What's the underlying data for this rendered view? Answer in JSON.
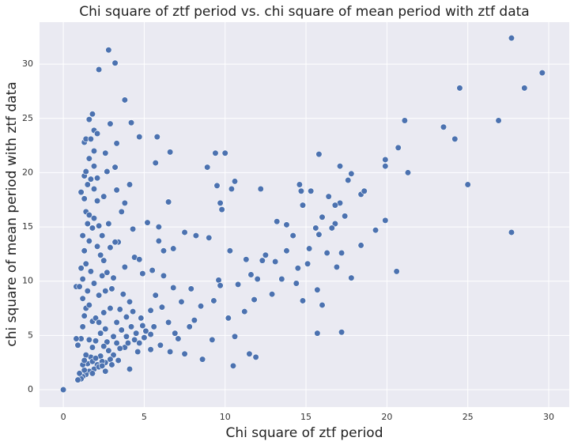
{
  "chart_data": {
    "type": "scatter",
    "title": "Chi square of ztf period vs. chi square of mean period with ztf data",
    "x_label": "Chi square of ztf period",
    "y_label": "chi square of mean period with ztf data",
    "color": "#4c72b0",
    "grid": true,
    "xlim": [
      -1.47,
      31.27
    ],
    "ylim": [
      -1.6,
      33.87
    ],
    "xticks": [
      0,
      5,
      10,
      15,
      20,
      25,
      30
    ],
    "yticks": [
      0,
      5,
      10,
      15,
      20,
      25,
      30
    ],
    "x": [
      0,
      2.8,
      3.2,
      2.2,
      3.8,
      1.8,
      4.2,
      2.9,
      1.6,
      1.9,
      2.1,
      4.7,
      5.8,
      1.3,
      3.3,
      6.6,
      9.4,
      10,
      5.7,
      3.2,
      8.9,
      4.1,
      9.5,
      10.6,
      10.4,
      12.2,
      14.6,
      14.7,
      15.3,
      15.8,
      17.1,
      16.4,
      14.8,
      17.6,
      17.8,
      18.4,
      18.6,
      19.9,
      19.9,
      20.7,
      21.1,
      21.3,
      23.5,
      24.2,
      24.5,
      25,
      26.9,
      27.7,
      28.5,
      29.6,
      27.7,
      20.6,
      19.9,
      19.3,
      18.4,
      17.8,
      17.2,
      15.7,
      16,
      16.9,
      17.2,
      17.4,
      16.8,
      16,
      15.6,
      15.8,
      16.3,
      16.6,
      17.1,
      16.8,
      15.2,
      14.2,
      14.5,
      13.8,
      13.2,
      12.5,
      12,
      11.3,
      10.3,
      10.8,
      11.2,
      11.8,
      12.9,
      13.5,
      14.4,
      14.8,
      15.7,
      15.1,
      10.2,
      10.6,
      10.5,
      11.5,
      11.9,
      9.2,
      8.6,
      9.6,
      9,
      8.2,
      7.5,
      6.8,
      6.2,
      5.2,
      5.9,
      5.9,
      6.5,
      9.7,
      9.8,
      13.8,
      13.1,
      12.3,
      11.6,
      9.7,
      9.3,
      8.5,
      7.9,
      7.3,
      7.8,
      8.1,
      7.1,
      6.6,
      7.5,
      6.2,
      6.8,
      5.5,
      4.9,
      5.7,
      5.4,
      6.1,
      6.5,
      6.9,
      5.4,
      6,
      4.4,
      4.7,
      3.8,
      3.4,
      3.2,
      4.3,
      3.6,
      3.8,
      3.3,
      2.6,
      2.7,
      2.1,
      2.5,
      2.8,
      2.4,
      2.9,
      2.5,
      2.4,
      3,
      3.7,
      4.1,
      3.5,
      3.3,
      3.9,
      4.3,
      4.8,
      4.5,
      4.9,
      5.1,
      5.6,
      5.4,
      4.1,
      4.6,
      3.8,
      4,
      4.4,
      5,
      3.5,
      3.1,
      2.8,
      3.3,
      2.6,
      2.3,
      2.9,
      2.1,
      1.9,
      1.6,
      1.4,
      1.2,
      1.1,
      1.3,
      1.5,
      1.7,
      1.8,
      2,
      2.2,
      2.4,
      1.2,
      1.4,
      1.6,
      1.1,
      0.8,
      0.9,
      0.8,
      1,
      1.2,
      1.4,
      1.3,
      1.2,
      1.6,
      1.8,
      2,
      2.3,
      2.6,
      1.9,
      2.2,
      1.7,
      1.4,
      1.3,
      1.6,
      1.8,
      1.5,
      1.2,
      1.4,
      1.6,
      1.9,
      1.3,
      1.1,
      1.5,
      1.7,
      1.3,
      1.4,
      1.9,
      1.6,
      1.9,
      1.4,
      1.7,
      1.9,
      2.1,
      2.2,
      2.1,
      2.3,
      1.1,
      1.2,
      1.5,
      2.7,
      3.1,
      2.6,
      2.9,
      2.5,
      2.2,
      3.6,
      4.2,
      4.7,
      3.9,
      2.7,
      2,
      1.8,
      2.5,
      3.1,
      0.9,
      1,
      1.3,
      1.8,
      2.6,
      3,
      3.4,
      2.4
    ],
    "values": [
      0,
      31.3,
      30.1,
      29.5,
      26.7,
      25.4,
      24.6,
      24.5,
      24.9,
      23.9,
      23.6,
      23.3,
      23.3,
      22.8,
      22.7,
      21.9,
      21.8,
      21.8,
      20.9,
      20.5,
      20.5,
      18.9,
      18.8,
      19.2,
      18.5,
      18.5,
      18.9,
      18.3,
      18.3,
      21.7,
      20.6,
      17.8,
      17,
      19.3,
      19.9,
      18,
      18.3,
      20.6,
      21.2,
      22.3,
      24.8,
      20,
      24.2,
      23.1,
      27.8,
      18.9,
      24.8,
      32.4,
      27.8,
      29.2,
      14.5,
      10.9,
      15.6,
      14.7,
      13.3,
      10.3,
      5.3,
      5.2,
      7.8,
      11.3,
      12.6,
      16,
      15.3,
      15.9,
      14.9,
      14.3,
      12.6,
      14.9,
      17.2,
      17,
      13,
      14.2,
      11.2,
      12.8,
      15.5,
      12.4,
      10.2,
      12,
      12.8,
      9.7,
      7.2,
      8.3,
      8.8,
      10.2,
      9.8,
      8.2,
      9.2,
      11.6,
      6.6,
      4.9,
      2.2,
      3.3,
      3,
      4.6,
      2.8,
      10.1,
      14,
      14.2,
      14.5,
      13,
      12.8,
      15.4,
      15,
      13.7,
      17.3,
      17.2,
      16.6,
      15.2,
      11.8,
      11.9,
      10.6,
      9.6,
      8.2,
      7.7,
      9.3,
      8.1,
      5.8,
      6.4,
      4.7,
      3.5,
      3.3,
      10.5,
      9.4,
      11,
      10.7,
      8.7,
      7.3,
      7.6,
      6.2,
      5.2,
      3.7,
      4.1,
      12.2,
      12,
      11.3,
      13.6,
      13.6,
      14.8,
      16.4,
      17.2,
      18.4,
      21.8,
      20.1,
      19.5,
      17.8,
      15.3,
      14.2,
      13.1,
      11.9,
      10.5,
      9.3,
      8.8,
      8.1,
      7.4,
      6.2,
      6.7,
      7.2,
      6.6,
      5.2,
      5.9,
      5.4,
      5.8,
      5.1,
      1.9,
      3.5,
      3.9,
      4.3,
      4.6,
      4.8,
      3.8,
      3.2,
      3.6,
      4.3,
      2.5,
      3.1,
      2.8,
      2.3,
      1.9,
      1.7,
      1.4,
      1.2,
      1,
      1.8,
      2.4,
      3,
      2.6,
      2.9,
      2.1,
      2.6,
      2.3,
      3.2,
      4.6,
      4.7,
      4.7,
      4.1,
      9.5,
      9.5,
      8.4,
      7.5,
      6.8,
      5.8,
      7.8,
      6.3,
      6.6,
      5.2,
      5.6,
      9.8,
      8.7,
      10.9,
      11.6,
      12.8,
      13.7,
      14.9,
      15.3,
      14.2,
      16.4,
      16.1,
      15.8,
      17.6,
      18.2,
      18.9,
      19.4,
      19.7,
      20.1,
      20.6,
      21.3,
      22,
      23.1,
      23.1,
      18.5,
      17.4,
      15.1,
      13.2,
      12.4,
      11.2,
      10.2,
      9.1,
      10.8,
      10.3,
      9.1,
      7.5,
      7.1,
      6.2,
      5.5,
      5.8,
      4.3,
      4.9,
      4.4,
      4.5,
      3.9,
      4,
      4.9,
      0.9,
      1.5,
      2.7,
      1.5,
      1.7,
      2.3,
      2.7,
      2.2
    ]
  }
}
